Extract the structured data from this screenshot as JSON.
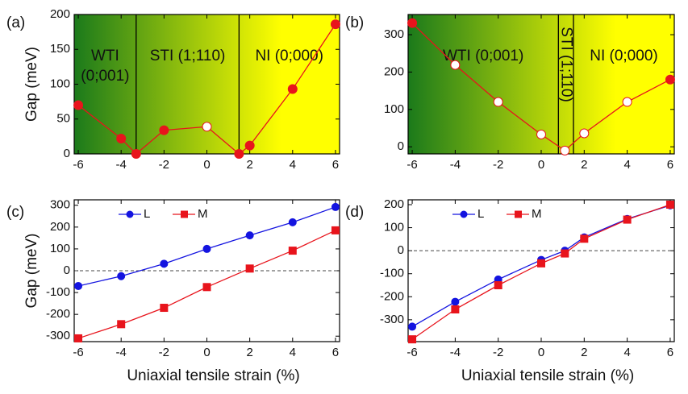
{
  "chart_data": [
    {
      "type": "line",
      "panel": "(a)",
      "y_label": "Gap (meV)",
      "xlim": [
        -6.19,
        6.19
      ],
      "ylim": [
        0,
        200
      ],
      "xticks": [
        -6,
        -4,
        -2,
        0,
        2,
        4,
        6
      ],
      "yticks": [
        0,
        50,
        100,
        150,
        200
      ],
      "background": [
        "#1b7a1b",
        "#ffff00"
      ],
      "vlines": [
        -3.3,
        1.5
      ],
      "regions": [
        {
          "lines": [
            "WTI",
            "(0;001)"
          ]
        },
        {
          "lines": [
            "STI (1;110)"
          ]
        },
        {
          "lines": [
            "NI (0;000)"
          ]
        }
      ],
      "x": [
        -6,
        -4,
        -3.3,
        -2,
        0,
        1.5,
        2,
        4,
        6
      ],
      "series": [
        {
          "color": "#e8141c",
          "marker": "circle",
          "values": [
            70,
            22,
            0,
            34,
            39,
            0,
            12,
            93,
            186
          ],
          "filled": [
            true,
            true,
            true,
            true,
            false,
            true,
            true,
            true,
            true
          ]
        }
      ]
    },
    {
      "type": "line",
      "panel": "(b)",
      "xlim": [
        -6.19,
        6.19
      ],
      "ylim": [
        -19,
        354
      ],
      "xticks": [
        -6,
        -4,
        -2,
        0,
        2,
        4,
        6
      ],
      "yticks": [
        0,
        100,
        200,
        300
      ],
      "background": [
        "#1b7a1b",
        "#ffff00"
      ],
      "vlines": [
        0.8,
        1.5
      ],
      "regions": [
        {
          "lines": [
            "WTI (0;001)"
          ]
        },
        {
          "lines": [
            "STI (1;110)"
          ],
          "rotated": true
        },
        {
          "lines": [
            "NI (0;000)"
          ]
        }
      ],
      "x": [
        -6,
        -4,
        -2,
        0,
        1.1,
        2,
        4,
        6
      ],
      "series": [
        {
          "color": "#e8141c",
          "marker": "circle",
          "values": [
            331,
            219,
            120,
            33,
            -10,
            36,
            120,
            180
          ],
          "filled": [
            true,
            false,
            false,
            false,
            false,
            false,
            false,
            true
          ]
        }
      ]
    },
    {
      "type": "line",
      "panel": "(c)",
      "y_label": "Gap (meV)",
      "x_label": "Uniaxial tensile strain (%)",
      "xlim": [
        -6.19,
        6.19
      ],
      "ylim": [
        -325,
        325
      ],
      "xticks": [
        -6,
        -4,
        -2,
        0,
        2,
        4,
        6
      ],
      "yticks": [
        -300,
        -200,
        -100,
        0,
        100,
        200,
        300
      ],
      "zero_line": true,
      "legend": "top-left",
      "x": [
        -6,
        -4,
        -2,
        0,
        2,
        4,
        6
      ],
      "series": [
        {
          "name": "L",
          "color": "#1414e0",
          "marker": "circle",
          "values": [
            -70,
            -25,
            32,
            100,
            162,
            222,
            292
          ]
        },
        {
          "name": "M",
          "color": "#e8141c",
          "marker": "square",
          "values": [
            -310,
            -245,
            -170,
            -75,
            10,
            92,
            185
          ]
        }
      ]
    },
    {
      "type": "line",
      "panel": "(d)",
      "x_label": "Uniaxial tensile strain (%)",
      "xlim": [
        -6.19,
        6.19
      ],
      "ylim": [
        -395,
        221
      ],
      "xticks": [
        -6,
        -4,
        -2,
        0,
        2,
        4,
        6
      ],
      "yticks": [
        -300,
        -200,
        -100,
        0,
        100,
        200
      ],
      "zero_line": true,
      "legend": "top-left",
      "x": [
        -6,
        -4,
        -2,
        0,
        1.1,
        2,
        4,
        6
      ],
      "series": [
        {
          "name": "L",
          "color": "#1414e0",
          "marker": "circle",
          "values": [
            -330,
            -222,
            -125,
            -40,
            0,
            58,
            138,
            197
          ]
        },
        {
          "name": "M",
          "color": "#e8141c",
          "marker": "square",
          "values": [
            -385,
            -255,
            -150,
            -55,
            -12,
            52,
            135,
            200
          ]
        }
      ]
    }
  ]
}
